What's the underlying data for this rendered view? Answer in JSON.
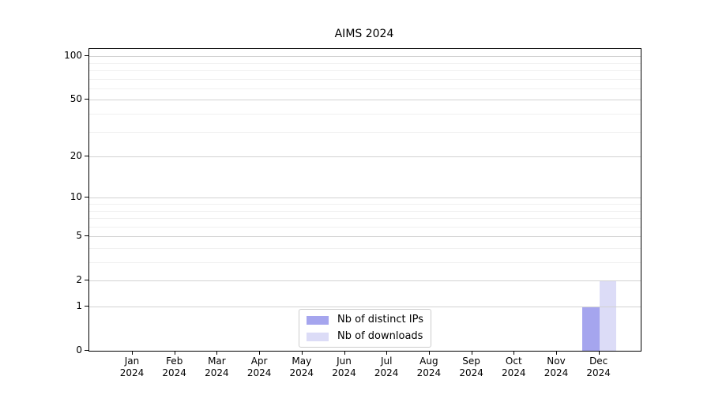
{
  "chart_data": {
    "type": "bar",
    "title": "AIMS 2024",
    "categories": [
      {
        "month": "Jan",
        "year": "2024"
      },
      {
        "month": "Feb",
        "year": "2024"
      },
      {
        "month": "Mar",
        "year": "2024"
      },
      {
        "month": "Apr",
        "year": "2024"
      },
      {
        "month": "May",
        "year": "2024"
      },
      {
        "month": "Jun",
        "year": "2024"
      },
      {
        "month": "Jul",
        "year": "2024"
      },
      {
        "month": "Aug",
        "year": "2024"
      },
      {
        "month": "Sep",
        "year": "2024"
      },
      {
        "month": "Oct",
        "year": "2024"
      },
      {
        "month": "Nov",
        "year": "2024"
      },
      {
        "month": "Dec",
        "year": "2024"
      }
    ],
    "series": [
      {
        "name": "Nb of distinct IPs",
        "color": "#a5a5ee",
        "values": [
          0,
          0,
          0,
          0,
          0,
          0,
          0,
          0,
          0,
          0,
          0,
          1
        ]
      },
      {
        "name": "Nb of downloads",
        "color": "#dcdcf7",
        "values": [
          0,
          0,
          0,
          0,
          0,
          0,
          0,
          0,
          0,
          0,
          0,
          2
        ]
      }
    ],
    "yscale": "log1p",
    "ylim": [
      0,
      112
    ],
    "y_ticks": [
      0,
      1,
      2,
      5,
      10,
      20,
      50,
      100
    ],
    "y_minor_gridlines": [
      3,
      4,
      6,
      7,
      8,
      9,
      30,
      40,
      60,
      70,
      80,
      90
    ],
    "grid": "on",
    "legend_position": "lower center",
    "colors": {
      "axis": "#000000",
      "grid_major": "#d2d2d2",
      "grid_minor": "#f0f0f0",
      "legend_border": "#cccccc"
    }
  }
}
